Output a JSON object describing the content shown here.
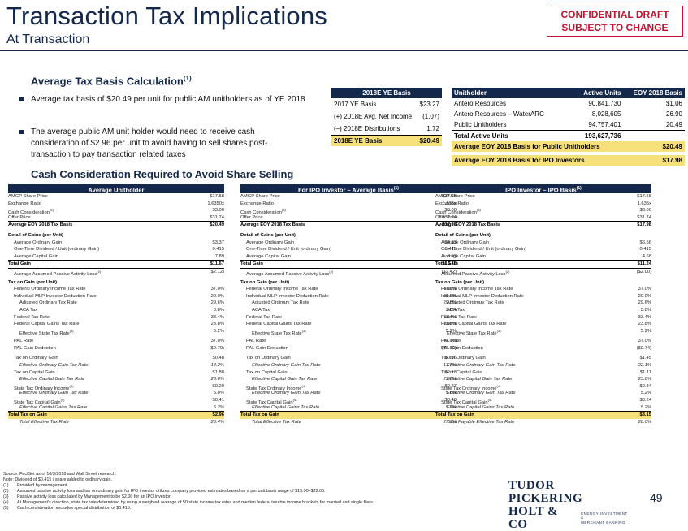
{
  "header": {
    "title": "Transaction Tax Implications",
    "subtitle": "At Transaction",
    "confidential_line1": "CONFIDENTIAL DRAFT",
    "confidential_line2": "SUBJECT TO CHANGE"
  },
  "basis_section": {
    "heading": "Average Tax Basis Calculation",
    "heading_sup": "(1)",
    "bullet1": "Average tax basis of $20.49 per unit for public AM unitholders as of YE 2018",
    "bullet2": "The average public AM unit holder would need to receive cash consideration of $2.96 per unit to avoid having to sell shares post-transaction to pay transaction related taxes"
  },
  "ye_basis_table": {
    "header": "2018E YE Basis",
    "rows": [
      {
        "label": "2017 YE Basis",
        "value": "$23.27"
      },
      {
        "label": "(+) 2018E Avg. Net Income",
        "value": "(1.07)"
      },
      {
        "label": "(–) 2018E Distributions",
        "value": "1.72"
      }
    ],
    "total_label": "2018E YE Basis",
    "total_value": "$20.49"
  },
  "unitholder_table": {
    "headers": [
      "Unitholder",
      "Active Units",
      "EOY 2018 Basis"
    ],
    "rows": [
      {
        "name": "Antero Resources",
        "units": "90,841,730",
        "basis": "$1.06"
      },
      {
        "name": "Antero Resources – WaterARC",
        "units": "8,028,605",
        "basis": "26.90"
      },
      {
        "name": "Public Unitholders",
        "units": "94,757,401",
        "basis": "20.49"
      }
    ],
    "total_label": "Total Active Units",
    "total_units": "193,627,736",
    "public_label": "Average EOY 2018 Basis for Public Unitholders",
    "public_value": "$20.49",
    "ipo_label": "Average EOY 2018 Basis for IPO Investors",
    "ipo_value": "$17.98"
  },
  "cash_section": {
    "heading": "Cash Consideration Required to Avoid Share Selling"
  },
  "columns": [
    {
      "header": "Average Unitholder",
      "header_sup": "",
      "values": [
        "$17.58",
        "1.6350x",
        "$3.00",
        "$31.74",
        "$20.49",
        "$3.37",
        "0.415",
        "7.89",
        "$11.67",
        "($2.12)",
        "37.0%",
        "20.0%",
        "29.6%",
        "3.8%",
        "33.4%",
        "23.8%",
        "5.2%",
        "37.0%",
        "($0.79)",
        "$0.48",
        "14.2%",
        "$1.88",
        "23.8%",
        "$0.20",
        "5.8%",
        "$0.41",
        "5.2%",
        "$2.96",
        "25.4%"
      ]
    },
    {
      "header": "For IPO Investor – Average Basis",
      "header_sup": "(1)",
      "values": [
        "$17.58",
        "1.635x",
        "$3.00",
        "$31.74",
        "$17.98",
        "$4.83",
        "0.415",
        "8.93",
        "$13.76",
        "($2.42)",
        "37.0%",
        "20.0%",
        "29.6%",
        "3.8%",
        "33.4%",
        "23.8%",
        "5.2%",
        "37.0%",
        "($0.90)",
        "$0.86",
        "17.7%",
        "$2.13",
        "23.8%",
        "$0.27",
        "5.6%",
        "$0.46",
        "5.2%",
        "$3.72",
        "27.0%"
      ]
    },
    {
      "header": "IPO Investor – IPO Basis",
      "header_sup": "(1)",
      "values": [
        "$17.58",
        "1.635x",
        "$3.00",
        "$31.74",
        "$17.98",
        "$6.56",
        "0.415",
        "4.68",
        "$11.24",
        "($2.00)",
        "37.0%",
        "20.0%",
        "29.6%",
        "3.8%",
        "33.4%",
        "23.8%",
        "5.2%",
        "37.0%",
        "($0.74)",
        "$1.45",
        "22.1%",
        "$1.11",
        "23.8%",
        "$0.34",
        "5.2%",
        "$0.24",
        "5.2%",
        "$3.15",
        "28.0%"
      ]
    }
  ],
  "row_labels": {
    "amgp_price": "AMGP Share Price",
    "exchange_ratio": "Exchange Ratio",
    "cash_consideration": "Cash Consideration",
    "cash_sup": "(5)",
    "offer_price": "Offer Price",
    "avg_basis": "Average EOY 2018 Tax Basis",
    "detail_head": "Detail of Gains (per Unit)",
    "avg_ordinary_gain": "Average Ordinary Gain",
    "one_time_dividend": "One-Time Dividend / Unit (ordinary Gain)",
    "avg_capital_gain": "Average Capital Gain",
    "total_gain": "Total Gain",
    "passive_loss": "Average Assumed Passive Activity Loss",
    "passive_loss_sup": "(2)",
    "passive_loss_ipo": "Assumed Passive Activity Loss",
    "tax_head": "Tax on Gain (per Unit)",
    "fed_ord_rate": "Federal Ordinary Income Tax Rate",
    "mlp_deduction": "Individual MLP Investor Deduction Rate",
    "adj_ord_rate": "Adjusted Ordinary Tax Rate",
    "aca_tax": "ACA Tax",
    "fed_tax_rate": "Federal Tax Rate",
    "fed_cap_rate": "Federal Capital Gains Tax Rate",
    "eff_state_rate": "Effective State Tax Rate",
    "eff_state_sup": "(3)",
    "pal_rate": "PAL Rate",
    "pal_deduction": "PAL Gain Deduction",
    "tax_on_ord": "Tax on Ordinary Gain",
    "eff_ord_rate": "Effective Ordinary Gain Tax Rate",
    "tax_on_cap": "Tax on Capital Gain",
    "eff_cap_rate": "Effective Capital Gain Tax Rate",
    "state_ord": "State Tax Ordinary Income",
    "state_ord_sup": "(4)",
    "eff_ord_rate2": "Effective Ordinary Gain Tax Rate",
    "state_cap": "State Tax Capital Gain",
    "state_cap_sup": "(4)",
    "eff_cap_rate2": "Effective Capital Gains Tax Rate",
    "total_tax": "Total Tax on Gain",
    "total_eff_rate": "Total Effective Tax Rate",
    "total_payable_rate": "Total Payable Effective Tax Rate"
  },
  "footnotes": {
    "source": "Source: FactSet as of 10/3/2018 and Wall Street research.",
    "note": "Note: Dividend of $0.415 / share added to ordinary gain.",
    "items": [
      {
        "n": "(1)",
        "t": "Provided by management."
      },
      {
        "n": "(2)",
        "t": "Assumed passive activity loss and tax on ordinary gain for IPO investor utilizes company provided estimates based on a per unit basis range of $19.00–$22.00."
      },
      {
        "n": "(3)",
        "t": "Passive activity loss calculated by Management to be $2.00 for an IPO investor."
      },
      {
        "n": "(4)",
        "t": "At Management's direction, state tax rate determined by using a weighted average of 50 state income tax rates and median federal taxable income brackets for married and single filers."
      },
      {
        "n": "(5)",
        "t": "Cash consideration excludes special distribution of $0.415."
      }
    ]
  },
  "logo": {
    "line1": "TUDOR PICKERING",
    "line2": "HOLT & CO",
    "tag1": "ENERGY INVESTMENT &",
    "tag2": "MERCHANT BANKING"
  },
  "page_number": "49"
}
